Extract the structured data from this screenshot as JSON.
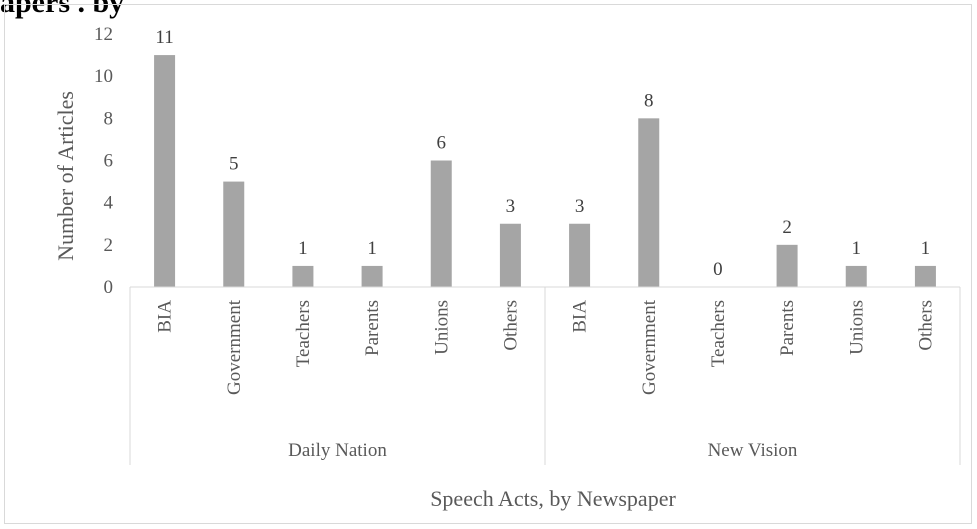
{
  "header_fragment": "apers . by",
  "chart_data": {
    "type": "bar",
    "ylabel": "Number of Articles",
    "xlabel": "Speech Acts, by Newspaper",
    "ylim": [
      0,
      12
    ],
    "yticks": [
      0,
      2,
      4,
      6,
      8,
      10,
      12
    ],
    "groups": [
      {
        "name": "Daily Nation",
        "categories": [
          "BIA",
          "Government",
          "Teachers",
          "Parents",
          "Unions",
          "Others"
        ],
        "values": [
          11,
          5,
          1,
          1,
          6,
          3
        ]
      },
      {
        "name": "New Vision",
        "categories": [
          "BIA",
          "Government",
          "Teachers",
          "Parents",
          "Unions",
          "Others"
        ],
        "values": [
          3,
          8,
          0,
          2,
          1,
          1
        ]
      }
    ],
    "bar_color": "#a5a5a5",
    "grid": false,
    "legend": "none"
  }
}
